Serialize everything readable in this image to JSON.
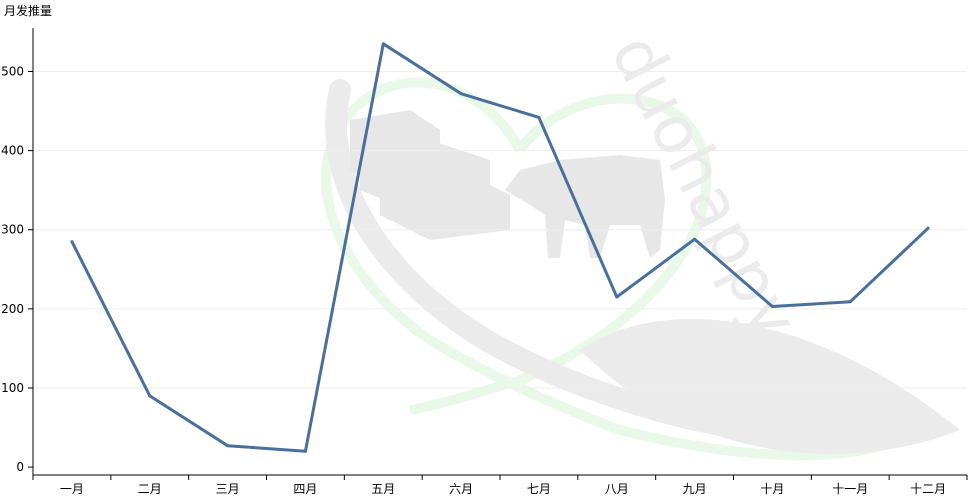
{
  "chart_data": {
    "type": "line",
    "ylabel": "月发推量",
    "categories": [
      "一月",
      "二月",
      "三月",
      "四月",
      "五月",
      "六月",
      "七月",
      "八月",
      "九月",
      "十月",
      "十一月",
      "十二月"
    ],
    "series": [
      {
        "values": [
          285,
          90,
          27,
          20,
          535,
          472,
          442,
          215,
          288,
          203,
          209,
          302
        ],
        "color": "#4a6f9b"
      }
    ],
    "yticks": [
      0,
      100,
      200,
      300,
      400,
      500
    ],
    "ylim": [
      -10,
      555
    ],
    "grid": true,
    "watermark": "duohappy"
  }
}
